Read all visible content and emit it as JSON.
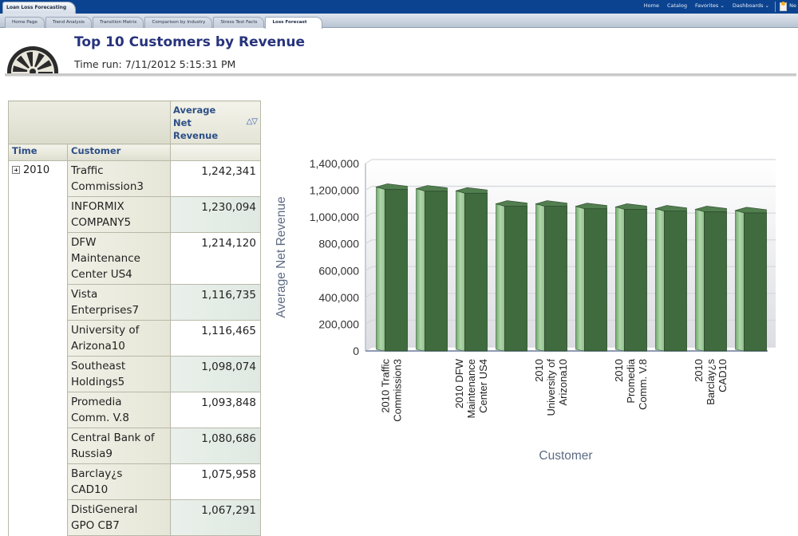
{
  "app": {
    "title": "Loan Loss Forecasting",
    "top_links": [
      "Home",
      "Catalog",
      "Favorites ⌄",
      "Dashboards ⌄"
    ],
    "top_cut_text": "Ne"
  },
  "tabs": [
    {
      "label": "Home Page",
      "active": false
    },
    {
      "label": "Trend Analysis",
      "active": false
    },
    {
      "label": "Transition Matrix",
      "active": false
    },
    {
      "label": "Comparison by Industry",
      "active": false
    },
    {
      "label": "Stress Test Facts",
      "active": false
    },
    {
      "label": "Loss Forecast",
      "active": true
    }
  ],
  "header": {
    "title": "Top 10 Customers by Revenue",
    "time_run": "Time run: 7/11/2012 5:15:31 PM"
  },
  "pivot": {
    "measure_header": [
      "Average",
      "Net",
      "Revenue"
    ],
    "sort_icons": "△▽",
    "col_headers": {
      "time": "Time",
      "customer": "Customer"
    },
    "time_value": "2010",
    "rows": [
      {
        "customer": [
          "Traffic",
          "Commission3"
        ],
        "value": "1,242,341"
      },
      {
        "customer": [
          "INFORMIX",
          "COMPANY5"
        ],
        "value": "1,230,094"
      },
      {
        "customer": [
          "DFW",
          "Maintenance",
          "Center US4"
        ],
        "value": "1,214,120"
      },
      {
        "customer": [
          "Vista",
          "Enterprises7"
        ],
        "value": "1,116,735"
      },
      {
        "customer": [
          "University of",
          "Arizona10"
        ],
        "value": "1,116,465"
      },
      {
        "customer": [
          "Southeast",
          "Holdings5"
        ],
        "value": "1,098,074"
      },
      {
        "customer": [
          "Promedia",
          "Comm. V.8"
        ],
        "value": "1,093,848"
      },
      {
        "customer": [
          "Central Bank of",
          "Russia9"
        ],
        "value": "1,080,686"
      },
      {
        "customer": [
          "Barclay¿s",
          "CAD10"
        ],
        "value": "1,075,958"
      },
      {
        "customer": [
          "DistiGeneral",
          "GPO CB7"
        ],
        "value": "1,067,291"
      }
    ]
  },
  "chart_data": {
    "type": "bar",
    "title": "",
    "xlabel": "Customer",
    "ylabel": "Average Net Revenue",
    "ylim": [
      0,
      1400000
    ],
    "yticks": [
      0,
      200000,
      400000,
      600000,
      800000,
      1000000,
      1200000,
      1400000
    ],
    "ytick_labels": [
      "0",
      "200,000",
      "400,000",
      "600,000",
      "800,000",
      "1,000,000",
      "1,200,000",
      "1,400,000"
    ],
    "grid": true,
    "legend": "none",
    "categories": [
      "2010 Traffic Commission3",
      "2010 INFORMIX COMPANY5",
      "2010 DFW Maintenance Center US4",
      "2010 Vista Enterprises7",
      "2010 University of Arizona10",
      "2010 Southeast Holdings5",
      "2010 Promedia Comm. V.8",
      "2010 Central Bank of Russia9",
      "2010 Barclay¿s CAD10",
      "2010 DistiGeneral GPO CB7"
    ],
    "visible_category_labels": [
      {
        "index": 0,
        "lines": [
          "2010 Traffic",
          "Commission3"
        ]
      },
      {
        "index": 2,
        "lines": [
          "2010 DFW",
          "Maintenance",
          "Center US4"
        ]
      },
      {
        "index": 4,
        "lines": [
          "2010",
          "University of",
          "Arizona10"
        ]
      },
      {
        "index": 6,
        "lines": [
          "2010",
          "Promedia",
          "Comm. V.8"
        ]
      },
      {
        "index": 8,
        "lines": [
          "2010",
          "Barclay¿s",
          "CAD10"
        ]
      }
    ],
    "values": [
      1242341,
      1230094,
      1214120,
      1116735,
      1116465,
      1098074,
      1093848,
      1080686,
      1075958,
      1067291
    ],
    "colors": {
      "bar_front": "#3f6b3f",
      "bar_side": "#8fbf8a",
      "bar_top": "#527f50"
    }
  }
}
